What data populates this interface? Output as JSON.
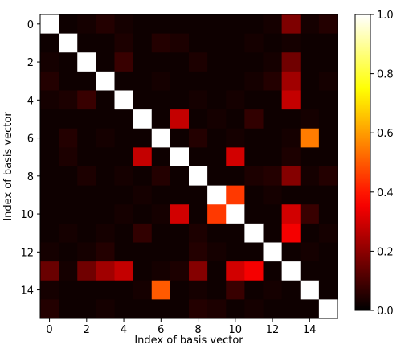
{
  "chart_data": {
    "type": "heatmap",
    "xlabel": "Index of basis vector",
    "ylabel": "Index of basis vector",
    "x_ticks": [
      0,
      2,
      4,
      6,
      8,
      10,
      12,
      14
    ],
    "y_ticks": [
      0,
      2,
      4,
      6,
      8,
      10,
      12,
      14
    ],
    "colorbar_ticks": [
      "0.0",
      "0.2",
      "0.4",
      "0.6",
      "0.8",
      "1.0"
    ],
    "colorbar_range": [
      0,
      1
    ],
    "colormap": "hot",
    "size": 16,
    "matrix": [
      [
        1.0,
        0.02,
        0.03,
        0.05,
        0.03,
        0.02,
        0.02,
        0.02,
        0.02,
        0.02,
        0.02,
        0.02,
        0.03,
        0.18,
        0.03,
        0.05
      ],
      [
        0.02,
        1.0,
        0.02,
        0.02,
        0.04,
        0.02,
        0.05,
        0.04,
        0.02,
        0.02,
        0.02,
        0.03,
        0.02,
        0.03,
        0.02,
        0.02
      ],
      [
        0.03,
        0.02,
        1.0,
        0.02,
        0.08,
        0.02,
        0.02,
        0.02,
        0.04,
        0.02,
        0.02,
        0.02,
        0.03,
        0.16,
        0.02,
        0.02
      ],
      [
        0.05,
        0.02,
        0.02,
        1.0,
        0.02,
        0.02,
        0.03,
        0.02,
        0.02,
        0.02,
        0.02,
        0.03,
        0.05,
        0.23,
        0.02,
        0.03
      ],
      [
        0.03,
        0.04,
        0.08,
        0.02,
        1.0,
        0.02,
        0.02,
        0.02,
        0.03,
        0.02,
        0.03,
        0.02,
        0.02,
        0.28,
        0.02,
        0.02
      ],
      [
        0.02,
        0.02,
        0.02,
        0.02,
        0.02,
        1.0,
        0.02,
        0.28,
        0.02,
        0.03,
        0.02,
        0.07,
        0.02,
        0.02,
        0.03,
        0.02
      ],
      [
        0.02,
        0.05,
        0.02,
        0.03,
        0.02,
        0.02,
        1.0,
        0.02,
        0.05,
        0.02,
        0.03,
        0.02,
        0.02,
        0.03,
        0.55,
        0.02
      ],
      [
        0.02,
        0.04,
        0.02,
        0.02,
        0.02,
        0.28,
        0.02,
        1.0,
        0.02,
        0.02,
        0.3,
        0.02,
        0.02,
        0.04,
        0.02,
        0.02
      ],
      [
        0.02,
        0.02,
        0.04,
        0.02,
        0.03,
        0.02,
        0.05,
        0.02,
        1.0,
        0.02,
        0.02,
        0.04,
        0.05,
        0.19,
        0.03,
        0.05
      ],
      [
        0.02,
        0.02,
        0.02,
        0.02,
        0.02,
        0.03,
        0.02,
        0.02,
        0.02,
        1.0,
        0.45,
        0.02,
        0.03,
        0.02,
        0.02,
        0.02
      ],
      [
        0.02,
        0.02,
        0.02,
        0.02,
        0.03,
        0.02,
        0.03,
        0.3,
        0.02,
        0.45,
        1.0,
        0.02,
        0.02,
        0.3,
        0.08,
        0.02
      ],
      [
        0.02,
        0.03,
        0.02,
        0.03,
        0.02,
        0.07,
        0.02,
        0.02,
        0.04,
        0.02,
        0.02,
        1.0,
        0.02,
        0.35,
        0.02,
        0.03
      ],
      [
        0.03,
        0.02,
        0.03,
        0.05,
        0.02,
        0.02,
        0.02,
        0.02,
        0.05,
        0.03,
        0.02,
        0.02,
        1.0,
        0.02,
        0.03,
        0.02
      ],
      [
        0.15,
        0.03,
        0.16,
        0.23,
        0.28,
        0.02,
        0.03,
        0.04,
        0.19,
        0.02,
        0.3,
        0.35,
        0.02,
        1.0,
        0.02,
        0.02
      ],
      [
        0.03,
        0.02,
        0.02,
        0.02,
        0.02,
        0.03,
        0.5,
        0.02,
        0.03,
        0.02,
        0.08,
        0.02,
        0.03,
        0.02,
        1.0,
        0.02
      ],
      [
        0.05,
        0.02,
        0.02,
        0.03,
        0.02,
        0.02,
        0.02,
        0.02,
        0.05,
        0.04,
        0.02,
        0.03,
        0.02,
        0.02,
        0.02,
        1.0
      ]
    ]
  }
}
